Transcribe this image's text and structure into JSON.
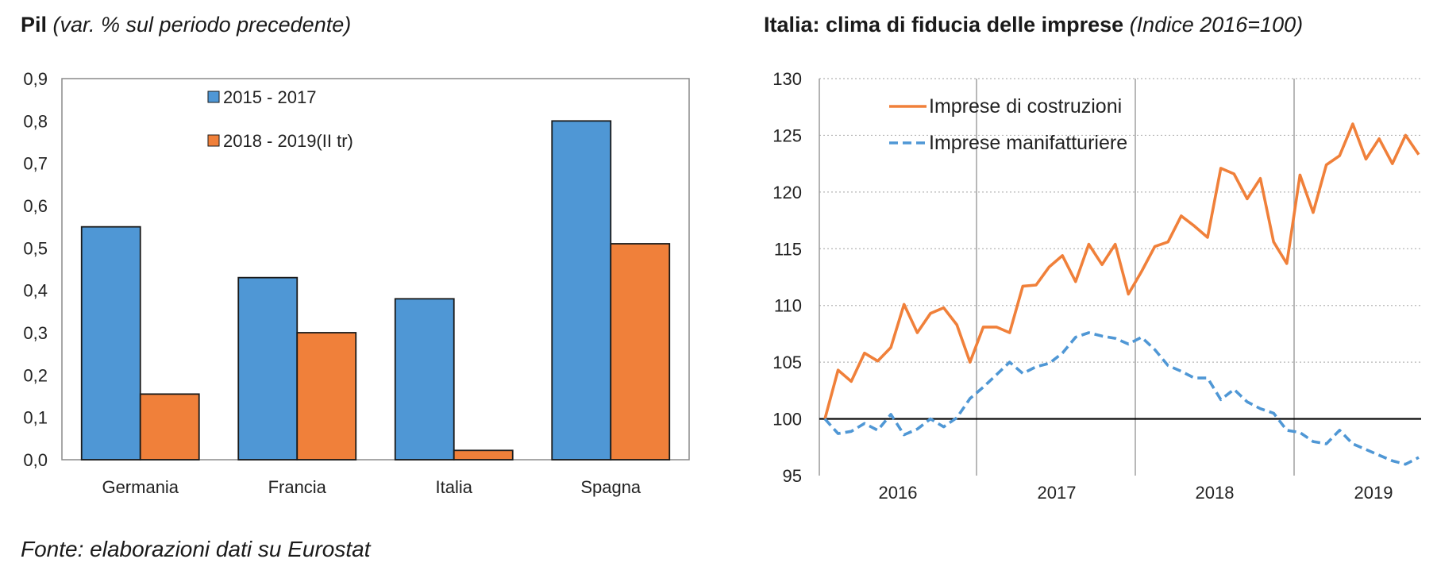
{
  "left_title": {
    "bold": "Pil",
    "italic": "(var. % sul periodo precedente)"
  },
  "right_title": {
    "bold": "Italia: clima di fiducia delle imprese",
    "italic": "(Indice 2016=100)"
  },
  "source": "Fonte: elaborazioni dati su Eurostat",
  "colors": {
    "blue": "#4f97d5",
    "orange": "#f0803a",
    "dashed_blue": "#4f97d5",
    "baseline": "#000000",
    "grid": "#bdbdbd"
  },
  "chart_data": [
    {
      "type": "bar",
      "title": "Pil",
      "subtitle": "(var. % sul periodo precedente)",
      "categories": [
        "Germania",
        "Francia",
        "Italia",
        "Spagna"
      ],
      "series": [
        {
          "name": "2015 - 2017",
          "values": [
            0.55,
            0.43,
            0.38,
            0.8
          ]
        },
        {
          "name": "2018 - 2019(II tr)",
          "values": [
            0.155,
            0.3,
            0.022,
            0.51
          ]
        }
      ],
      "ylim": [
        0,
        0.9
      ],
      "yticks": [
        "0,0",
        "0,1",
        "0,2",
        "0,3",
        "0,4",
        "0,5",
        "0,6",
        "0,7",
        "0,8",
        "0,9"
      ],
      "legend": "top-center",
      "grid": false
    },
    {
      "type": "line",
      "title": "Italia: clima di fiducia delle imprese",
      "subtitle": "(Indice 2016=100)",
      "x_labels": [
        "2016",
        "2017",
        "2018",
        "2019"
      ],
      "ylim": [
        95,
        130
      ],
      "yticks": [
        "95",
        "100",
        "105",
        "110",
        "115",
        "120",
        "125",
        "130"
      ],
      "series": [
        {
          "name": "Imprese di costruzioni",
          "style": "solid",
          "values": [
            100.0,
            104.3,
            103.3,
            105.8,
            105.1,
            106.3,
            110.1,
            107.6,
            109.3,
            109.8,
            108.3,
            105.0,
            108.1,
            108.1,
            107.6,
            111.7,
            111.8,
            113.4,
            114.4,
            112.1,
            115.4,
            113.6,
            115.4,
            111.0,
            113.0,
            115.2,
            115.6,
            117.9,
            117.0,
            116.0,
            122.1,
            121.6,
            119.4,
            121.2,
            115.6,
            113.7,
            121.5,
            118.2,
            122.4,
            123.2,
            126.0,
            122.9,
            124.7,
            122.5,
            125.0,
            123.3
          ]
        },
        {
          "name": "Imprese manifatturiere",
          "style": "dashed",
          "values": [
            100.0,
            98.7,
            98.9,
            99.6,
            99.0,
            100.4,
            98.6,
            99.1,
            100.0,
            99.3,
            100.1,
            101.8,
            102.8,
            103.9,
            105.0,
            104.0,
            104.6,
            104.9,
            105.8,
            107.2,
            107.6,
            107.3,
            107.1,
            106.6,
            107.2,
            106.1,
            104.7,
            104.2,
            103.6,
            103.6,
            101.7,
            102.6,
            101.5,
            100.9,
            100.5,
            99.0,
            98.8,
            98.0,
            97.8,
            99.0,
            97.8,
            97.3,
            96.8,
            96.3,
            96.0,
            96.6
          ]
        }
      ],
      "baseline": 100,
      "legend": "top-left",
      "grid": true
    }
  ]
}
